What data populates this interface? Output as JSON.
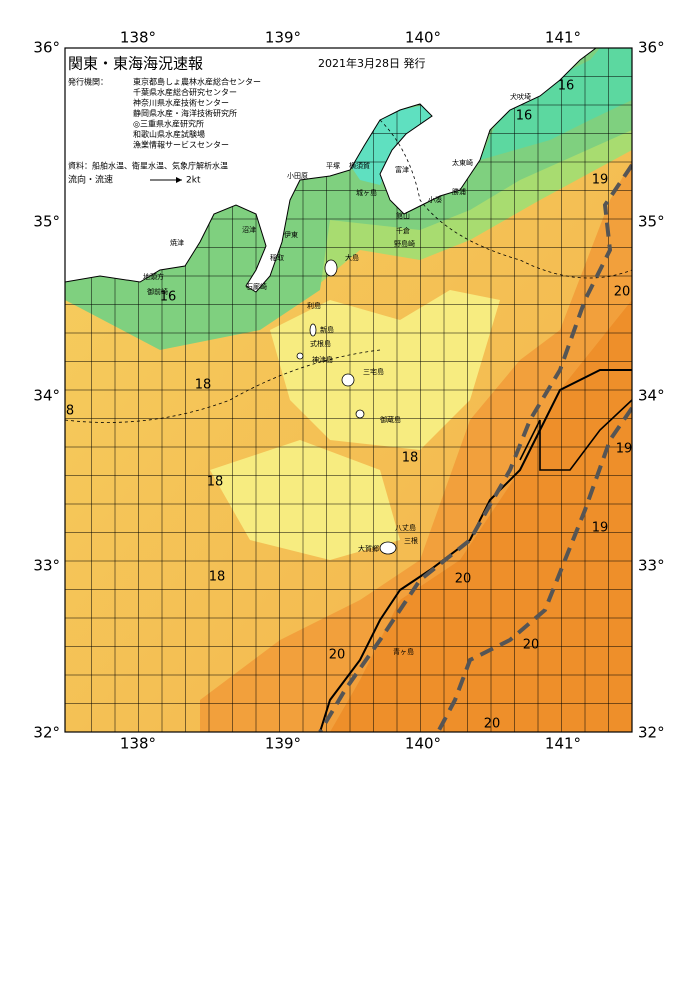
{
  "header": {
    "title": "関東・東海海況速報",
    "date": "2021年3月28日 発行"
  },
  "issuers": {
    "label": "発行機関：",
    "items": [
      "東京都島しょ農林水産総合センター",
      "千葉県水産総合研究センター",
      "神奈川県水産技術センター",
      "静岡県水産・海洋技術研究所",
      "◎三重県水産研究所",
      "和歌山県水産試験場",
      "漁業情報サービスセンター"
    ]
  },
  "source": "資料：船舶水温、衛星水温、気象庁解析水温",
  "legend": {
    "label": "流向・流速",
    "speed": "2kt"
  },
  "axes": {
    "lon_top": [
      "138°",
      "139°",
      "140°",
      "141°"
    ],
    "lon_bottom": [
      "138°",
      "139°",
      "140°",
      "141°"
    ],
    "lat_left": [
      "36°",
      "35°",
      "34°",
      "33°",
      "32°"
    ],
    "lat_right": [
      "36°",
      "35°",
      "34°",
      "33°",
      "32°"
    ]
  },
  "isotherm_labels": [
    16,
    16,
    19,
    16,
    20,
    18,
    8,
    19,
    18,
    18,
    19,
    18,
    20,
    20,
    20,
    20
  ],
  "place_names": [
    "犬吠埼",
    "太東崎",
    "勝浦",
    "小湊",
    "館山",
    "千倉",
    "野島崎",
    "横須賀",
    "平塚",
    "城ヶ島",
    "富津",
    "小田原",
    "伊東",
    "稲取",
    "沼津",
    "石廊崎",
    "焼津",
    "御前崎",
    "地頭方",
    "大島",
    "利島",
    "新島",
    "式根島",
    "神津島",
    "三宅島",
    "御蔵島",
    "八丈島",
    "三根",
    "大賀郷",
    "青ヶ島"
  ]
}
